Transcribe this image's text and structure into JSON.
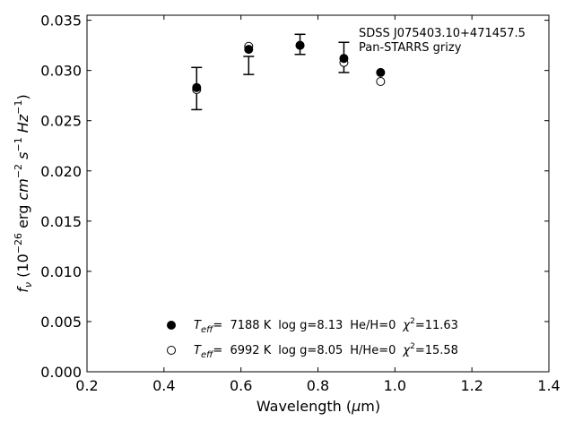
{
  "chart_data": {
    "type": "scatter",
    "xlabel": "Wavelength (µm)",
    "ylabel": "f_ν (10^-26 erg cm^-2 s^-1 Hz^-1)",
    "xlim": [
      0.2,
      1.4
    ],
    "ylim": [
      0.0,
      0.0355
    ],
    "x_ticks": [
      "0.2",
      "0.4",
      "0.6",
      "0.8",
      "1.0",
      "1.2",
      "1.4"
    ],
    "y_ticks": [
      "0.000",
      "0.005",
      "0.010",
      "0.015",
      "0.020",
      "0.025",
      "0.030",
      "0.035"
    ],
    "annotations": [
      "SDSS J075403.10+471457.5",
      "Pan-STARRS grizy"
    ],
    "observed": {
      "x": [
        0.4849,
        0.6201,
        0.7535,
        0.8674,
        0.9628
      ],
      "y": [
        0.0282,
        0.0305,
        0.0326,
        0.0313,
        null
      ],
      "err": [
        0.0021,
        0.0009,
        0.001,
        0.0015,
        null
      ]
    },
    "series": [
      {
        "name": "Teff=7188 K log g=8.13 He/H=0 χ²=11.63",
        "marker": "filled",
        "x": [
          0.4849,
          0.6201,
          0.7535,
          0.8674,
          0.9628
        ],
        "y": [
          0.0283,
          0.0321,
          0.0325,
          0.0312,
          0.0298
        ]
      },
      {
        "name": "Teff=6992 K log g=8.05 H/He=0 χ²=15.58",
        "marker": "open",
        "x": [
          0.4849,
          0.6201,
          0.7535,
          0.8674,
          0.9628
        ],
        "y": [
          0.0281,
          0.0324,
          0.0325,
          0.0308,
          0.0289
        ]
      }
    ],
    "legend": {
      "placement": "lower-center",
      "entries": [
        {
          "teff_label": "T",
          "teff_sub": "eff",
          "teff_value": "=  7188 K",
          "logg": "log g=8.13",
          "comp": "He/H=0",
          "chi_label": "χ",
          "chi_sup": "2",
          "chi_value": "=11.63"
        },
        {
          "teff_label": "T",
          "teff_sub": "eff",
          "teff_value": "=  6992 K",
          "logg": "log g=8.05",
          "comp": "H/He=0",
          "chi_label": "χ",
          "chi_sup": "2",
          "chi_value": "=15.58"
        }
      ]
    }
  }
}
